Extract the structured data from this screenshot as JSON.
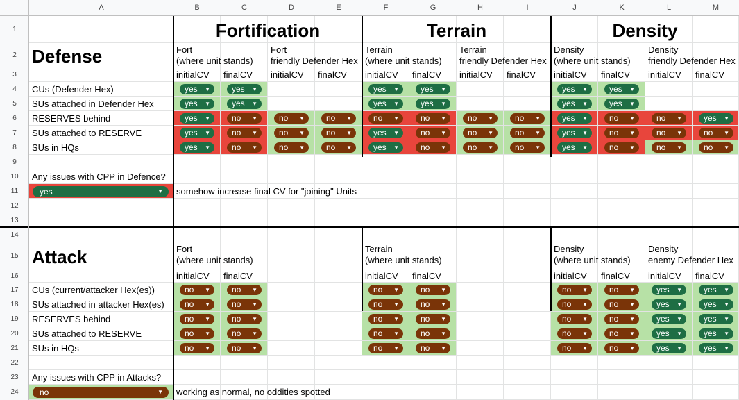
{
  "columns": [
    "A",
    "B",
    "C",
    "D",
    "E",
    "F",
    "G",
    "H",
    "I",
    "J",
    "K",
    "L",
    "M"
  ],
  "rows": [
    "1",
    "2",
    "3",
    "4",
    "5",
    "6",
    "7",
    "8",
    "9",
    "10",
    "11",
    "12",
    "13",
    "14",
    "15",
    "16",
    "17",
    "18",
    "19",
    "20",
    "21",
    "22",
    "23",
    "24"
  ],
  "groups": {
    "fortification": "Fortification",
    "terrain": "Terrain",
    "density": "Density"
  },
  "defense": {
    "title": "Defense",
    "col_headers": {
      "B": "Fort\n(where unit stands)",
      "D": "Fort\nfriendly Defender Hex",
      "F": "Terrain\n(where unit stands)",
      "H": "Terrain\nfriendly Defender Hex",
      "J": "Density\n(where unit stands)",
      "L": "Density\nfriendly Defender Hex"
    },
    "cv_labels": [
      "initialCV",
      "finalCV",
      "initialCV",
      "finalCV",
      "initialCV",
      "finalCV",
      "initialCV",
      "finalCV",
      "initialCV",
      "finalCV",
      "initialCV",
      "finalCV"
    ],
    "row_labels": [
      "CUs (Defender Hex)",
      "SUs attached in Defender Hex",
      "RESERVES behind",
      "SUs attached to RESERVE",
      "SUs in HQs"
    ],
    "values": [
      [
        "yes",
        "yes",
        "",
        "",
        "yes",
        "yes",
        "",
        "",
        "yes",
        "yes",
        "",
        ""
      ],
      [
        "yes",
        "yes",
        "",
        "",
        "yes",
        "yes",
        "",
        "",
        "yes",
        "yes",
        "",
        ""
      ],
      [
        "yes",
        "no",
        "no",
        "no",
        "no",
        "no",
        "no",
        "no",
        "yes",
        "no",
        "no",
        "yes"
      ],
      [
        "yes",
        "no",
        "no",
        "no",
        "yes",
        "no",
        "no",
        "no",
        "yes",
        "no",
        "no",
        "no"
      ],
      [
        "yes",
        "no",
        "no",
        "no",
        "yes",
        "no",
        "no",
        "no",
        "yes",
        "no",
        "no",
        "no"
      ]
    ],
    "question": "Any issues with CPP in Defence?",
    "answer": "yes",
    "note": "somehow increase final CV for \"joining\" Units"
  },
  "attack": {
    "title": "Attack",
    "col_headers": {
      "B": "Fort\n(where unit stands)",
      "F": "Terrain\n(where unit stands)",
      "J": "Density\n(where unit stands)",
      "L": "Density\nenemy Defender Hex"
    },
    "cv_labels": [
      "initialCV",
      "finalCV",
      "initialCV",
      "finalCV",
      "initialCV",
      "finalCV",
      "initialCV",
      "finalCV"
    ],
    "row_labels": [
      "CUs (current/attacker Hex(es))",
      "SUs attached in attacker Hex(es)",
      "RESERVES behind",
      "SUs attached to RESERVE",
      "SUs in HQs"
    ],
    "values": [
      [
        "no",
        "no",
        "no",
        "no",
        "no",
        "no",
        "yes",
        "yes"
      ],
      [
        "no",
        "no",
        "no",
        "no",
        "no",
        "no",
        "yes",
        "yes"
      ],
      [
        "no",
        "no",
        "no",
        "no",
        "no",
        "no",
        "yes",
        "yes"
      ],
      [
        "no",
        "no",
        "no",
        "no",
        "no",
        "no",
        "yes",
        "yes"
      ],
      [
        "no",
        "no",
        "no",
        "no",
        "no",
        "no",
        "yes",
        "yes"
      ]
    ],
    "question": "Any issues with CPP in Attacks?",
    "answer": "no",
    "note": "working as normal, no oddities spotted"
  },
  "colors": {
    "yes_chip": "#1e6e44",
    "no_chip": "#7a3408",
    "green_fill": "#b7e1a6",
    "red_fill": "#e8453c"
  },
  "icons": {
    "dropdown": "dropdown-arrow-icon"
  }
}
